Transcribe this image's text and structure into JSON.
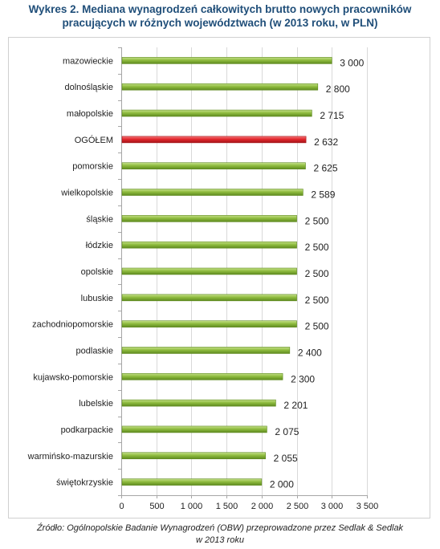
{
  "title_line1": "Wykres 2. Mediana wynagrodzeń całkowitych brutto nowych pracowników",
  "title_line2": "pracujących w różnych województwach (w 2013 roku, w PLN)",
  "source_line1": "Źródło: Ogólnopolskie Badanie Wynagrodzeń (OBW) przeprowadzone przez Sedlak & Sedlak",
  "source_line2": "w 2013 roku",
  "colors": {
    "bar": "#8fbc3f",
    "bar_light": "#c5e08a",
    "bar_dark": "#5e8a1f",
    "highlight": "#e3262b",
    "highlight_light": "#f47a7d",
    "highlight_dark": "#a3141a",
    "grid": "#d9d9d9",
    "axis": "#a6a6a6",
    "text": "#222222"
  },
  "chart_data": {
    "type": "bar",
    "orientation": "horizontal",
    "categories": [
      "mazowieckie",
      "dolnośląskie",
      "małopolskie",
      "OGÓŁEM",
      "pomorskie",
      "wielkopolskie",
      "śląskie",
      "łódzkie",
      "opolskie",
      "lubuskie",
      "zachodniopomorskie",
      "podlaskie",
      "kujawsko-pomorskie",
      "lubelskie",
      "podkarpackie",
      "warmińsko-mazurskie",
      "świętokrzyskie"
    ],
    "values": [
      3000,
      2800,
      2715,
      2632,
      2625,
      2589,
      2500,
      2500,
      2500,
      2500,
      2500,
      2400,
      2300,
      2201,
      2075,
      2055,
      2000
    ],
    "value_labels": [
      "3 000",
      "2 800",
      "2 715",
      "2 632",
      "2 625",
      "2 589",
      "2 500",
      "2 500",
      "2 500",
      "2 500",
      "2 500",
      "2 400",
      "2 300",
      "2 201",
      "2 075",
      "2 055",
      "2 000"
    ],
    "highlight_category": "OGÓŁEM",
    "xlim": [
      0,
      3500
    ],
    "xticks": [
      0,
      500,
      1000,
      1500,
      2000,
      2500,
      3000,
      3500
    ],
    "xtick_labels": [
      "0",
      "500",
      "1 000",
      "1 500",
      "2 000",
      "2 500",
      "3 000",
      "3 500"
    ],
    "grid": true,
    "legend": "none"
  }
}
